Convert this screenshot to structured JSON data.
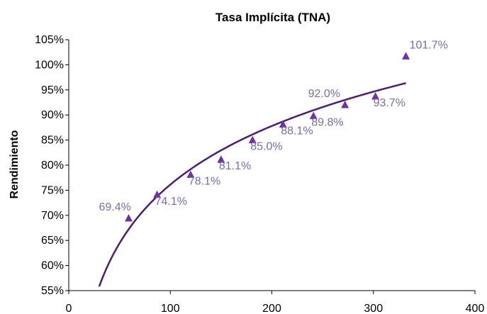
{
  "chart_data": {
    "type": "scatter",
    "title": "Tasa Implícita (TNA)",
    "xlabel": "",
    "ylabel": "Rendimiento",
    "xlim": [
      0,
      400
    ],
    "ylim": [
      55,
      105
    ],
    "x_ticks": [
      "0",
      "100",
      "200",
      "300",
      "400"
    ],
    "y_ticks": [
      "55%",
      "60%",
      "65%",
      "70%",
      "75%",
      "80%",
      "85%",
      "90%",
      "95%",
      "100%",
      "105%"
    ],
    "grid": false,
    "legend": "none",
    "marker": "triangle",
    "marker_color": "#7030A0",
    "label_color": "#7B6BA8",
    "trendline_color": "#4B1E6E",
    "series": [
      {
        "points": [
          {
            "x": 59,
            "y": 69.4,
            "label": "69.4%"
          },
          {
            "x": 87,
            "y": 74.1,
            "label": "74.1%"
          },
          {
            "x": 120,
            "y": 78.1,
            "label": "78.1%"
          },
          {
            "x": 150,
            "y": 81.1,
            "label": "81.1%"
          },
          {
            "x": 181,
            "y": 85.0,
            "label": "85.0%"
          },
          {
            "x": 211,
            "y": 88.1,
            "label": "88.1%"
          },
          {
            "x": 241,
            "y": 89.8,
            "label": "89.8%"
          },
          {
            "x": 272,
            "y": 92.0,
            "label": "92.0%"
          },
          {
            "x": 302,
            "y": 93.7,
            "label": "93.7%"
          },
          {
            "x": 332,
            "y": 101.7,
            "label": "101.7%"
          }
        ]
      }
    ],
    "trendline": {
      "type": "logarithmic",
      "x_from": 30,
      "x_to": 332
    }
  }
}
